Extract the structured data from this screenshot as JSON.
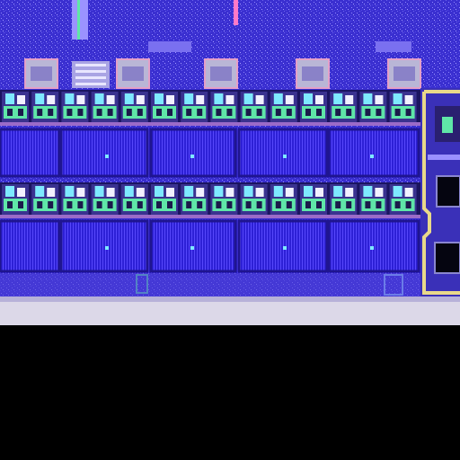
{
  "image": {
    "subject": "die-micrograph",
    "colors": {
      "substrate": "#3a2fd0",
      "substrate_dark": "#241a9a",
      "noise_light": "#8f86ff",
      "cell_green": "#5fe6a8",
      "cell_cyan": "#7ee9ff",
      "cell_dark": "#1a1460",
      "array_blue": "#2f22d8",
      "array_line": "#6a5cff",
      "frame_gold": "#e9d98a",
      "scribe_white": "#dcd8e8",
      "background": "#000000",
      "pad_pink": "#ff7ac8",
      "pad_gray": "#b9b6d6"
    },
    "layout": {
      "rows_of_cells": 2,
      "cells_per_row": 14,
      "array_blocks": 5,
      "top_pads": 5,
      "right_bonding_pads": 3
    }
  }
}
